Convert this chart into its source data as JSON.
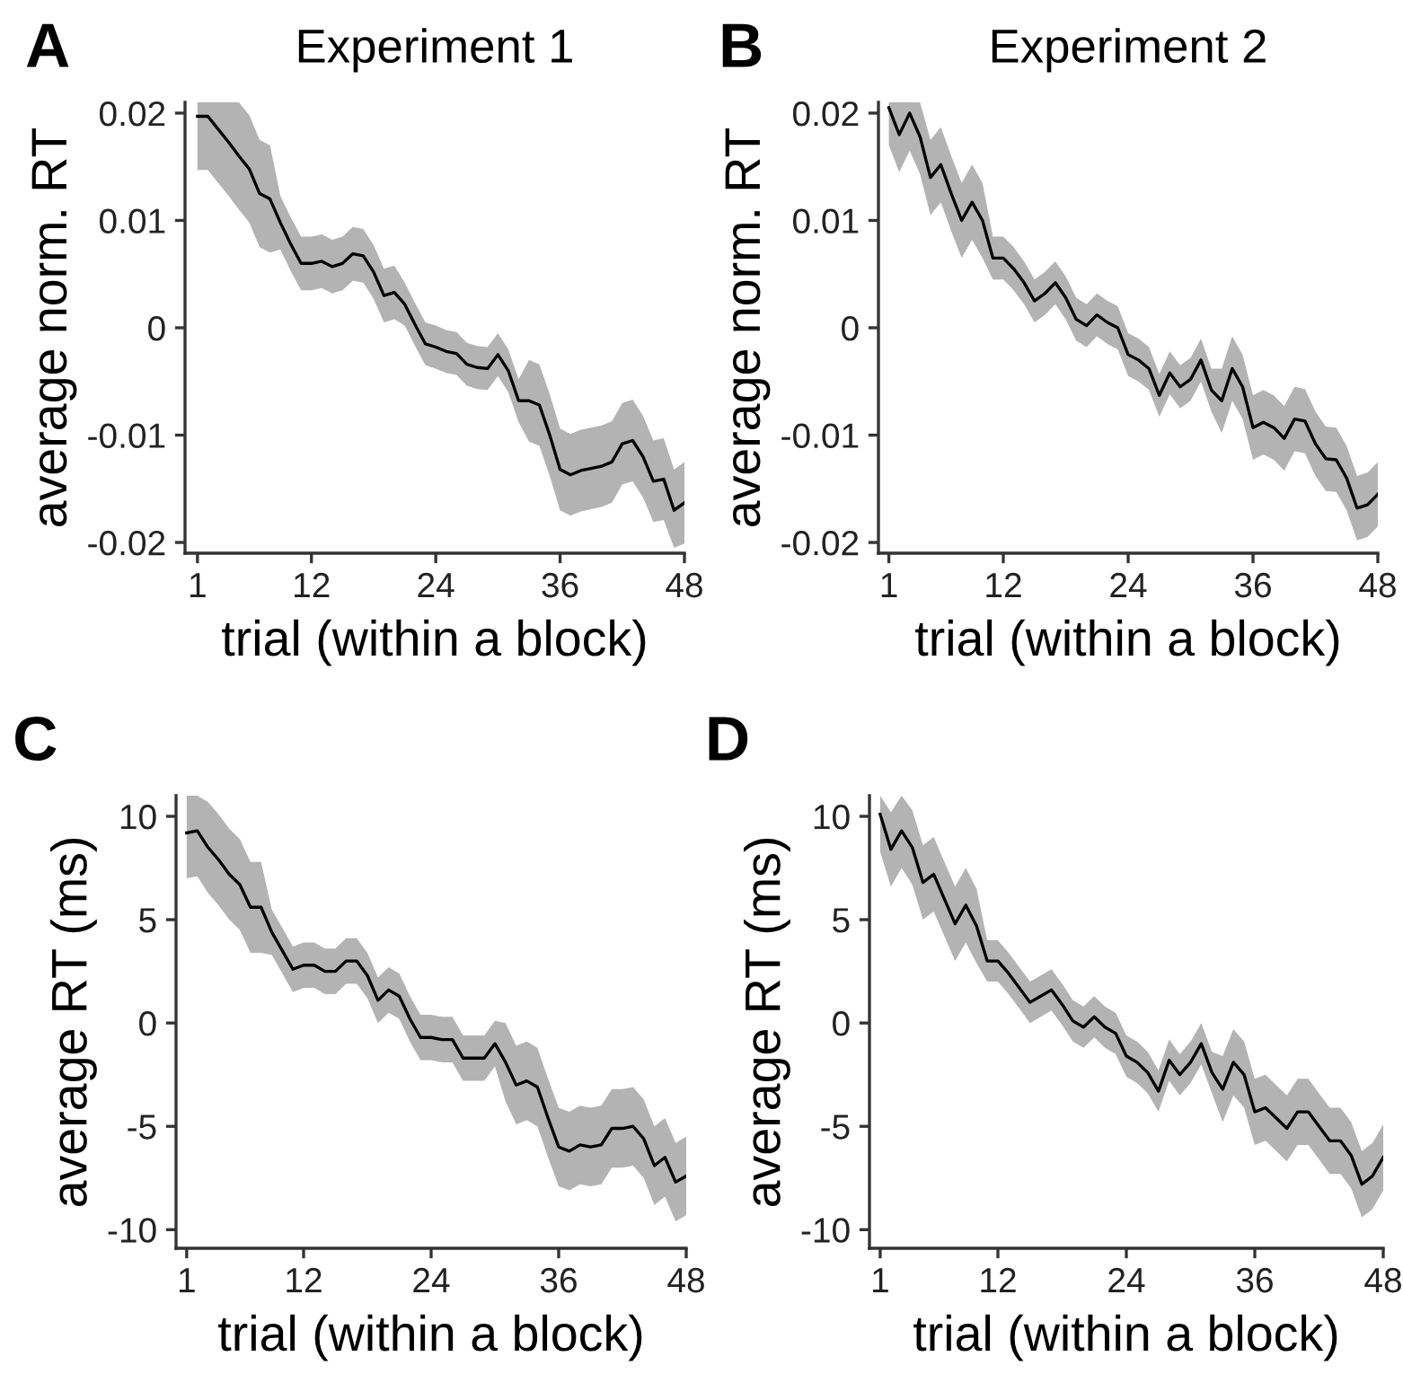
{
  "chart_data": [
    {
      "type": "line",
      "title": "Experiment 1",
      "xlabel": "trial (within a block)",
      "ylabel": "average norm. RT",
      "annotations": [
        "A"
      ],
      "x": [
        1,
        2,
        3,
        4,
        5,
        6,
        7,
        8,
        9,
        10,
        11,
        12,
        13,
        14,
        15,
        16,
        17,
        18,
        19,
        20,
        21,
        22,
        23,
        24,
        25,
        26,
        27,
        28,
        29,
        30,
        31,
        32,
        33,
        34,
        35,
        36,
        37,
        38,
        39,
        40,
        41,
        42,
        43,
        44,
        45,
        46,
        47,
        48
      ],
      "xlim": [
        -0.2,
        48
      ],
      "xticks": [
        1,
        12,
        24,
        36,
        48
      ],
      "ylim": [
        -0.021,
        0.021
      ],
      "yticks": [
        -0.02,
        -0.01,
        0,
        0.01,
        0.02
      ],
      "grid": false,
      "legend": false,
      "series": [
        {
          "color": "#000000",
          "values": [
            0.0197,
            0.0197,
            0.0185,
            0.0173,
            0.016,
            0.0148,
            0.0125,
            0.012,
            0.0098,
            0.0078,
            0.006,
            0.006,
            0.0062,
            0.0057,
            0.006,
            0.0069,
            0.0067,
            0.0052,
            0.003,
            0.0033,
            0.0022,
            0.0003,
            -0.0015,
            -0.0018,
            -0.0022,
            -0.0024,
            -0.0034,
            -0.0037,
            -0.0038,
            -0.0025,
            -0.004,
            -0.0068,
            -0.0068,
            -0.0072,
            -0.01,
            -0.0132,
            -0.0137,
            -0.0133,
            -0.0131,
            -0.0129,
            -0.0125,
            -0.0108,
            -0.0105,
            -0.012,
            -0.0143,
            -0.0141,
            -0.017,
            -0.0163
          ],
          "lower": [
            0.0147,
            0.0147,
            0.0135,
            0.0123,
            0.011,
            0.0098,
            0.0075,
            0.007,
            0.0073,
            0.0053,
            0.0035,
            0.0035,
            0.0037,
            0.0032,
            0.0035,
            0.0044,
            0.0042,
            0.0027,
            0.0005,
            0.0008,
            0.0002,
            -0.0017,
            -0.0035,
            -0.0038,
            -0.0042,
            -0.0044,
            -0.0054,
            -0.0057,
            -0.0058,
            -0.0045,
            -0.006,
            -0.0088,
            -0.0106,
            -0.011,
            -0.0138,
            -0.017,
            -0.0175,
            -0.0171,
            -0.0169,
            -0.0167,
            -0.0163,
            -0.0146,
            -0.0143,
            -0.0158,
            -0.0181,
            -0.0179,
            -0.0205,
            -0.0201
          ],
          "upper": [
            0.021,
            0.021,
            0.021,
            0.021,
            0.021,
            0.0198,
            0.0175,
            0.017,
            0.0123,
            0.0103,
            0.0085,
            0.0085,
            0.0087,
            0.0082,
            0.0085,
            0.0094,
            0.0092,
            0.0077,
            0.0055,
            0.0058,
            0.0042,
            0.0023,
            0.0005,
            0.0002,
            -0.0002,
            -0.0004,
            -0.0014,
            -0.0017,
            -0.0018,
            -0.0005,
            -0.002,
            -0.0048,
            -0.003,
            -0.0034,
            -0.0062,
            -0.0094,
            -0.0099,
            -0.0095,
            -0.0093,
            -0.0091,
            -0.0087,
            -0.007,
            -0.0067,
            -0.0082,
            -0.0105,
            -0.0103,
            -0.0132,
            -0.0125
          ]
        }
      ]
    },
    {
      "type": "line",
      "title": "Experiment 2",
      "xlabel": "trial (within a block)",
      "ylabel": "average norm. RT",
      "annotations": [
        "B"
      ],
      "x": [
        1,
        2,
        3,
        4,
        5,
        6,
        7,
        8,
        9,
        10,
        11,
        12,
        13,
        14,
        15,
        16,
        17,
        18,
        19,
        20,
        21,
        22,
        23,
        24,
        25,
        26,
        27,
        28,
        29,
        30,
        31,
        32,
        33,
        34,
        35,
        36,
        37,
        38,
        39,
        40,
        41,
        42,
        43,
        44,
        45,
        46,
        47,
        48
      ],
      "xlim": [
        0.0,
        48
      ],
      "xticks": [
        1,
        12,
        24,
        36,
        48
      ],
      "ylim": [
        -0.021,
        0.021
      ],
      "yticks": [
        -0.02,
        -0.01,
        0,
        0.01,
        0.02
      ],
      "grid": false,
      "legend": false,
      "series": [
        {
          "color": "#000000",
          "values": [
            0.0205,
            0.018,
            0.02,
            0.0178,
            0.014,
            0.0152,
            0.0125,
            0.01,
            0.0117,
            0.01,
            0.0065,
            0.0065,
            0.0055,
            0.0042,
            0.0025,
            0.0032,
            0.0042,
            0.0028,
            0.0008,
            0.0002,
            0.0012,
            0.0005,
            0.0,
            -0.0025,
            -0.003,
            -0.0038,
            -0.0063,
            -0.0042,
            -0.0055,
            -0.0048,
            -0.003,
            -0.0058,
            -0.0068,
            -0.0038,
            -0.0055,
            -0.0093,
            -0.0088,
            -0.0093,
            -0.0103,
            -0.0085,
            -0.0087,
            -0.0108,
            -0.0122,
            -0.0123,
            -0.014,
            -0.0168,
            -0.0165,
            -0.0155
          ],
          "lower": [
            0.017,
            0.0145,
            0.0165,
            0.0143,
            0.0105,
            0.0117,
            0.009,
            0.0065,
            0.0082,
            0.0065,
            0.0045,
            0.0045,
            0.0035,
            0.0022,
            0.0005,
            0.0012,
            0.0022,
            0.0008,
            -0.0012,
            -0.0018,
            -0.0008,
            -0.0015,
            -0.002,
            -0.0045,
            -0.005,
            -0.0058,
            -0.0083,
            -0.0062,
            -0.0075,
            -0.0068,
            -0.005,
            -0.0078,
            -0.0098,
            -0.0068,
            -0.0085,
            -0.0123,
            -0.0118,
            -0.0123,
            -0.0133,
            -0.0115,
            -0.0117,
            -0.0138,
            -0.0152,
            -0.0153,
            -0.017,
            -0.0198,
            -0.0195,
            -0.0185
          ],
          "upper": [
            0.021,
            0.021,
            0.021,
            0.021,
            0.0175,
            0.0187,
            0.016,
            0.0135,
            0.0152,
            0.0135,
            0.0085,
            0.0085,
            0.0075,
            0.0062,
            0.0045,
            0.0052,
            0.0062,
            0.0048,
            0.0028,
            0.0022,
            0.0032,
            0.0025,
            0.002,
            -0.0005,
            -0.001,
            -0.0018,
            -0.0043,
            -0.0022,
            -0.0035,
            -0.0028,
            -0.001,
            -0.0038,
            -0.0038,
            -0.0008,
            -0.0025,
            -0.0063,
            -0.0058,
            -0.0063,
            -0.0073,
            -0.0055,
            -0.0057,
            -0.0078,
            -0.0092,
            -0.0093,
            -0.011,
            -0.0138,
            -0.0135,
            -0.0125
          ]
        }
      ]
    },
    {
      "type": "line",
      "xlabel": "trial (within a block)",
      "ylabel": "average RT (ms)",
      "annotations": [
        "C"
      ],
      "x": [
        1,
        2,
        3,
        4,
        5,
        6,
        7,
        8,
        9,
        10,
        11,
        12,
        13,
        14,
        15,
        16,
        17,
        18,
        19,
        20,
        21,
        22,
        23,
        24,
        25,
        26,
        27,
        28,
        29,
        30,
        31,
        32,
        33,
        34,
        35,
        36,
        37,
        38,
        39,
        40,
        41,
        42,
        43,
        44,
        45,
        46,
        47,
        48
      ],
      "xlim": [
        0.0,
        48
      ],
      "xticks": [
        1,
        12,
        24,
        36,
        48
      ],
      "ylim": [
        -10.9,
        11
      ],
      "yticks": [
        -10,
        -5,
        0,
        5,
        10
      ],
      "grid": false,
      "legend": false,
      "series": [
        {
          "color": "#000000",
          "values": [
            9.2,
            9.3,
            8.5,
            7.9,
            7.2,
            6.7,
            5.6,
            5.6,
            4.4,
            3.5,
            2.6,
            2.8,
            2.8,
            2.5,
            2.5,
            3.0,
            3.0,
            2.3,
            1.1,
            1.6,
            1.3,
            0.2,
            -0.7,
            -0.7,
            -0.8,
            -0.8,
            -1.7,
            -1.7,
            -1.7,
            -1.0,
            -1.9,
            -3.0,
            -2.8,
            -3.1,
            -4.6,
            -6.0,
            -6.2,
            -5.9,
            -6.0,
            -5.9,
            -5.1,
            -5.1,
            -5.0,
            -5.6,
            -6.9,
            -6.5,
            -7.7,
            -7.4
          ],
          "lower": [
            7.0,
            7.1,
            6.3,
            5.7,
            5.0,
            4.5,
            3.4,
            3.4,
            3.3,
            2.4,
            1.5,
            1.7,
            1.7,
            1.4,
            1.4,
            1.9,
            1.9,
            1.2,
            0.0,
            0.5,
            0.2,
            -0.9,
            -1.8,
            -1.8,
            -1.9,
            -1.9,
            -2.8,
            -2.8,
            -2.8,
            -2.1,
            -3.8,
            -4.9,
            -4.7,
            -5.0,
            -6.5,
            -7.9,
            -8.1,
            -7.8,
            -7.9,
            -7.8,
            -7.0,
            -7.0,
            -6.9,
            -7.5,
            -8.8,
            -8.4,
            -9.6,
            -9.3
          ],
          "upper": [
            11.0,
            11.0,
            10.7,
            10.1,
            9.4,
            8.9,
            7.8,
            7.8,
            5.5,
            4.6,
            3.7,
            3.9,
            3.9,
            3.6,
            3.6,
            4.1,
            4.1,
            3.4,
            2.2,
            2.7,
            2.4,
            1.3,
            0.4,
            0.4,
            0.3,
            0.3,
            -0.6,
            -0.6,
            -0.6,
            0.1,
            0.0,
            -1.1,
            -0.9,
            -1.2,
            -2.7,
            -4.1,
            -4.3,
            -4.0,
            -4.1,
            -4.0,
            -3.2,
            -3.2,
            -3.1,
            -3.7,
            -5.0,
            -4.6,
            -5.8,
            -5.5
          ]
        }
      ]
    },
    {
      "type": "line",
      "xlabel": "trial (within a block)",
      "ylabel": "average RT (ms)",
      "annotations": [
        "D"
      ],
      "x": [
        1,
        2,
        3,
        4,
        5,
        6,
        7,
        8,
        9,
        10,
        11,
        12,
        13,
        14,
        15,
        16,
        17,
        18,
        19,
        20,
        21,
        22,
        23,
        24,
        25,
        26,
        27,
        28,
        29,
        30,
        31,
        32,
        33,
        34,
        35,
        36,
        37,
        38,
        39,
        40,
        41,
        42,
        43,
        44,
        45,
        46,
        47,
        48
      ],
      "xlim": [
        0.0,
        48
      ],
      "xticks": [
        1,
        12,
        24,
        36,
        48
      ],
      "ylim": [
        -10.9,
        11
      ],
      "yticks": [
        -10,
        -5,
        0,
        5,
        10
      ],
      "grid": false,
      "legend": false,
      "series": [
        {
          "color": "#000000",
          "values": [
            10.1,
            8.4,
            9.3,
            8.5,
            6.8,
            7.2,
            6.0,
            4.8,
            5.7,
            4.7,
            3.0,
            3.0,
            2.4,
            1.7,
            1.0,
            1.3,
            1.6,
            0.9,
            0.1,
            -0.2,
            0.3,
            -0.2,
            -0.5,
            -1.6,
            -1.9,
            -2.4,
            -3.3,
            -1.8,
            -2.5,
            -1.9,
            -1.0,
            -2.4,
            -3.2,
            -1.9,
            -2.5,
            -4.3,
            -4.1,
            -4.6,
            -5.1,
            -4.3,
            -4.3,
            -5.0,
            -5.7,
            -5.7,
            -6.4,
            -7.8,
            -7.4,
            -6.5
          ],
          "lower": [
            8.3,
            6.6,
            7.5,
            6.7,
            5.0,
            5.4,
            4.2,
            3.0,
            3.9,
            2.9,
            2.0,
            2.0,
            1.4,
            0.7,
            0.0,
            0.3,
            0.6,
            -0.1,
            -0.9,
            -1.2,
            -0.7,
            -1.2,
            -1.5,
            -2.6,
            -2.9,
            -3.4,
            -4.3,
            -2.8,
            -3.5,
            -2.9,
            -2.0,
            -3.4,
            -4.8,
            -3.5,
            -4.1,
            -5.9,
            -5.7,
            -6.2,
            -6.7,
            -5.9,
            -5.9,
            -6.6,
            -7.3,
            -7.3,
            -8.0,
            -9.4,
            -9.0,
            -8.1
          ],
          "upper": [
            11.0,
            10.2,
            11.0,
            10.3,
            8.6,
            9.0,
            7.8,
            6.6,
            7.5,
            6.5,
            4.0,
            4.0,
            3.4,
            2.7,
            2.0,
            2.3,
            2.6,
            1.9,
            1.1,
            0.8,
            1.3,
            0.8,
            0.5,
            -0.6,
            -0.9,
            -1.4,
            -2.3,
            -0.8,
            -1.5,
            -0.9,
            0.0,
            -1.4,
            -1.6,
            -0.3,
            -0.9,
            -2.7,
            -2.5,
            -3.0,
            -3.5,
            -2.7,
            -2.7,
            -3.4,
            -4.1,
            -4.1,
            -4.8,
            -6.2,
            -5.8,
            -4.9
          ]
        }
      ]
    }
  ]
}
